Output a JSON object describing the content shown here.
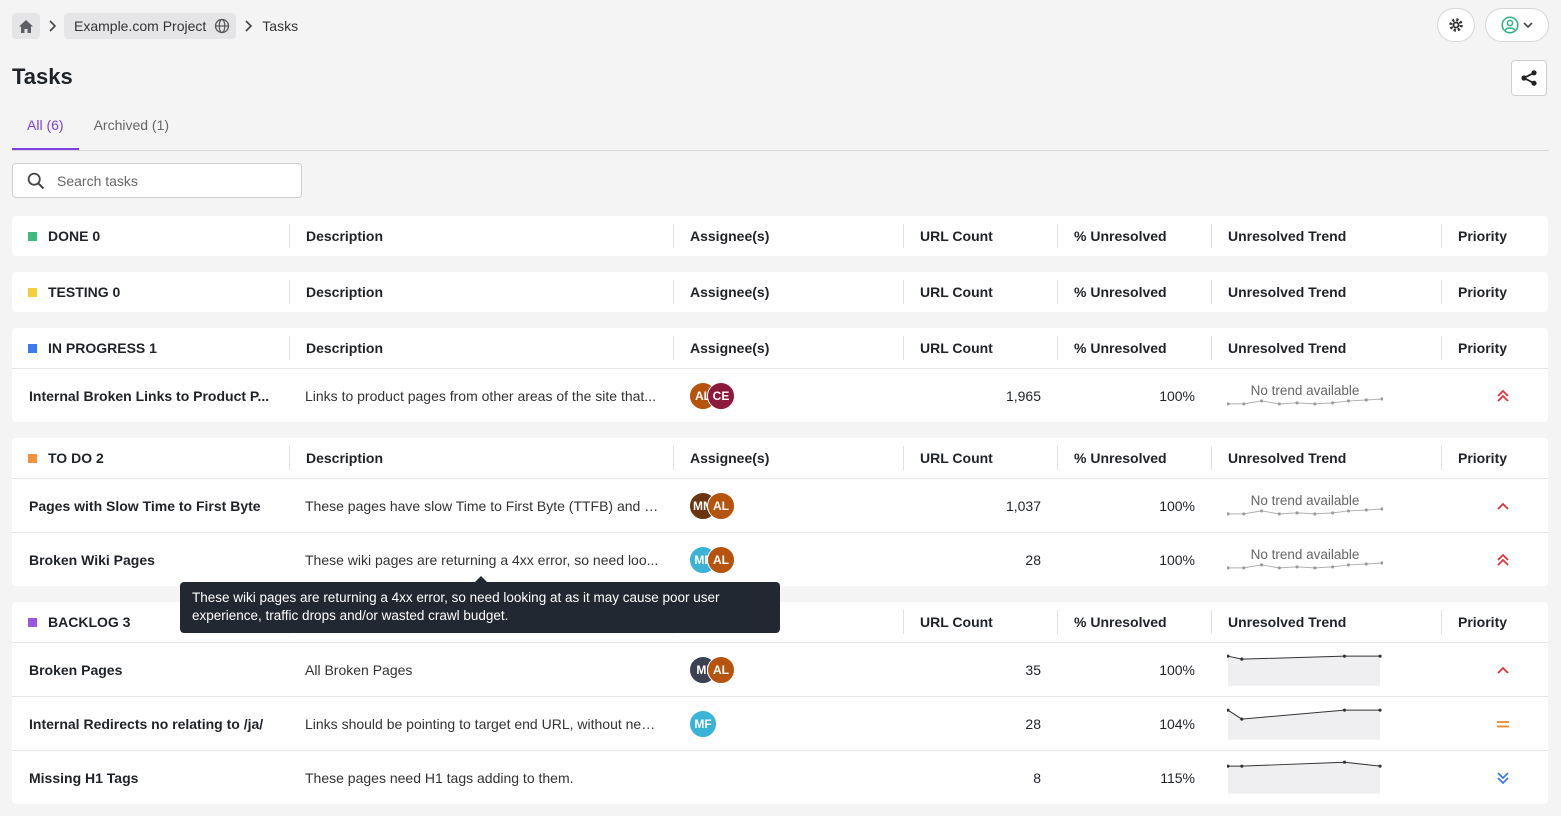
{
  "breadcrumb": {
    "project": "Example.com Project",
    "current": "Tasks"
  },
  "page": {
    "title": "Tasks"
  },
  "tabs": [
    {
      "label": "All (6)"
    },
    {
      "label": "Archived (1)"
    }
  ],
  "search": {
    "placeholder": "Search tasks"
  },
  "columns": {
    "description": "Description",
    "assignees": "Assignee(s)",
    "url_count": "URL Count",
    "unresolved": "% Unresolved",
    "trend": "Unresolved Trend",
    "priority": "Priority"
  },
  "no_trend": "No trend available",
  "groups": [
    {
      "label": "DONE 0",
      "color": "#3dbb7f"
    },
    {
      "label": "TESTING 0",
      "color": "#f5cf3a"
    },
    {
      "label": "IN PROGRESS 1",
      "color": "#3a7bf0"
    },
    {
      "label": "TO DO 2",
      "color": "#f4923a"
    },
    {
      "label": "BACKLOG 3",
      "color": "#9a56e0"
    }
  ],
  "tasks": [
    {
      "name": "Internal Broken Links to Product P...",
      "description": "Links to product pages from other areas of the site that...",
      "assignees": [
        {
          "initials": "AL",
          "color": "#b6540d"
        },
        {
          "initials": "CE",
          "color": "#8d1a3c"
        }
      ],
      "url_count": "1,965",
      "unresolved": "100%",
      "priority": "high"
    },
    {
      "name": "Pages with Slow Time to First Byte",
      "description": "These pages have slow Time to First Byte (TTFB) and n...",
      "assignees": [
        {
          "initials": "MM",
          "color": "#6b3410"
        },
        {
          "initials": "AL",
          "color": "#b6540d"
        }
      ],
      "url_count": "1,037",
      "unresolved": "100%",
      "priority": "medium-high"
    },
    {
      "name": "Broken Wiki Pages",
      "description": "These wiki pages are returning a 4xx error, so need loo...",
      "assignees": [
        {
          "initials": "MF",
          "color": "#3bb3d6"
        },
        {
          "initials": "AL",
          "color": "#b6540d"
        }
      ],
      "url_count": "28",
      "unresolved": "100%",
      "priority": "high"
    },
    {
      "name": "Broken Pages",
      "description": "All Broken Pages",
      "assignees": [
        {
          "initials": "MI",
          "color": "#3b4150"
        },
        {
          "initials": "AL",
          "color": "#b6540d"
        }
      ],
      "url_count": "35",
      "unresolved": "100%",
      "priority": "medium-high"
    },
    {
      "name": "Internal Redirects no relating to /ja/",
      "description": "Links should be pointing to target end URL, without nee...",
      "assignees": [
        {
          "initials": "MF",
          "color": "#3bb3d6"
        }
      ],
      "url_count": "28",
      "unresolved": "104%",
      "priority": "medium"
    },
    {
      "name": "Missing H1 Tags",
      "description": "These pages need H1 tags adding to them.",
      "assignees": [],
      "url_count": "8",
      "unresolved": "115%",
      "priority": "low"
    }
  ],
  "tooltip": {
    "text": "These wiki pages are returning a 4xx error, so need looking at as it may cause poor user experience, traffic drops and/or wasted crawl budget."
  },
  "colors": {
    "accent": "#7b3fe4",
    "priority_high": "#e0333d",
    "priority_medium": "#f08a24",
    "priority_low": "#3a7bf0"
  }
}
